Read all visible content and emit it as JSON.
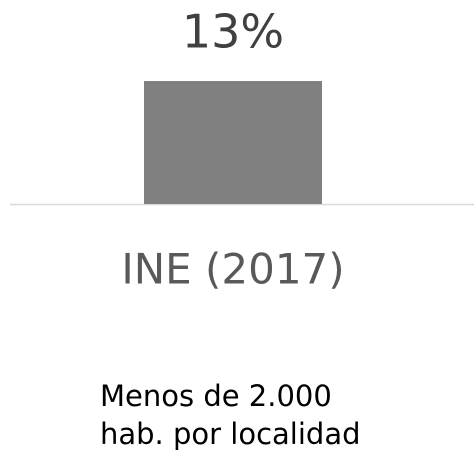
{
  "chart_data": {
    "type": "bar",
    "categories": [
      "INE (2017)"
    ],
    "values": [
      13
    ],
    "value_labels": [
      "13%"
    ],
    "color": "#808080",
    "annotations": [
      "Menos de 2.000",
      "hab. por localidad"
    ]
  }
}
